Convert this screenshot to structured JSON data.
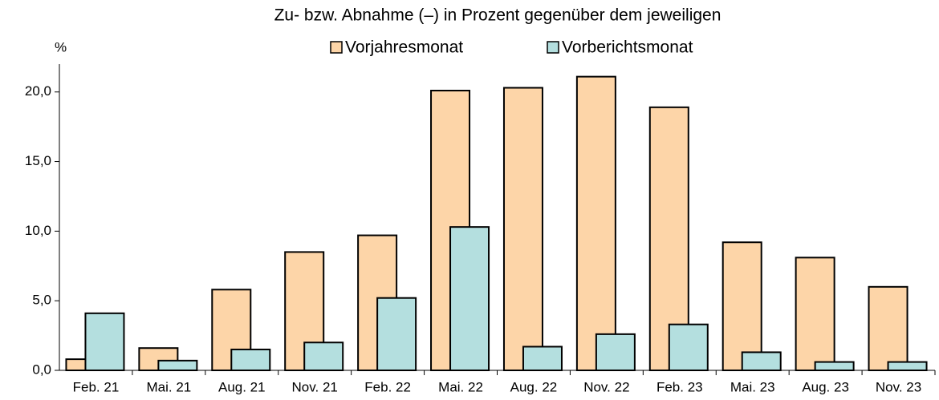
{
  "chart_data": {
    "type": "bar",
    "title": "Zu- bzw. Abnahme (–) in Prozent gegenüber dem jeweiligen",
    "y_label": "%",
    "categories": [
      "Feb. 21",
      "Mai. 21",
      "Aug. 21",
      "Nov. 21",
      "Feb. 22",
      "Mai. 22",
      "Aug. 22",
      "Nov. 22",
      "Feb. 23",
      "Mai. 23",
      "Aug. 23",
      "Nov. 23"
    ],
    "series": [
      {
        "name": "Vorjahresmonat",
        "color": "#fdd5a8",
        "values": [
          0.8,
          1.6,
          5.8,
          8.5,
          9.7,
          20.1,
          20.3,
          21.1,
          18.9,
          9.2,
          8.1,
          6.0
        ]
      },
      {
        "name": "Vorberichtsmonat",
        "color": "#b4dfdf",
        "values": [
          4.1,
          0.7,
          1.5,
          2.0,
          5.2,
          10.3,
          1.7,
          2.6,
          3.3,
          1.3,
          0.6,
          0.6
        ]
      }
    ],
    "ylim": [
      0,
      22
    ],
    "yticks": [
      {
        "value": 0,
        "label": "0,0"
      },
      {
        "value": 5,
        "label": "5,0"
      },
      {
        "value": 10,
        "label": "10,0"
      },
      {
        "value": 15,
        "label": "15,0"
      },
      {
        "value": 20,
        "label": "20,0"
      }
    ]
  }
}
